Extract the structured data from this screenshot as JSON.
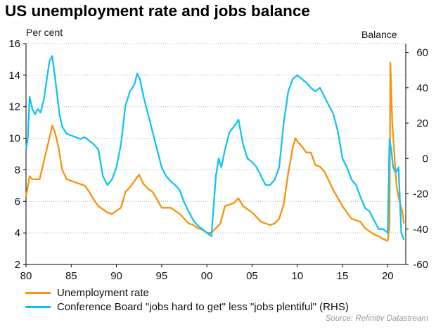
{
  "title": "US unemployment rate and jobs balance",
  "source": "Source: Refinitiv Datastream",
  "colors": {
    "unemployment": "#f5930b",
    "jobs_balance": "#12c3f2",
    "grid": "#b3b3b3",
    "axis": "#000000"
  },
  "chart_data": {
    "type": "line",
    "title": "US unemployment rate and jobs balance",
    "ylabel": "Per cent",
    "y2label": "Balance",
    "xlim": [
      1980,
      2022
    ],
    "ylim": [
      2,
      16
    ],
    "y2lim": [
      -60,
      65
    ],
    "x_ticks": [
      1980,
      1985,
      1990,
      1995,
      2000,
      2005,
      2010,
      2015,
      2020
    ],
    "x_tick_labels": [
      "80",
      "85",
      "90",
      "95",
      "00",
      "05",
      "10",
      "15",
      "20"
    ],
    "y_ticks": [
      2,
      4,
      6,
      8,
      10,
      12,
      14,
      16
    ],
    "y2_ticks": [
      -60,
      -40,
      -20,
      0,
      20,
      40,
      60
    ],
    "grid": "horizontal dotted",
    "legend_position": "bottom",
    "series": [
      {
        "name": "Unemployment rate",
        "axis": "left",
        "x": [
          1980.0,
          1980.4,
          1980.7,
          1981.0,
          1981.5,
          1982.0,
          1982.5,
          1982.9,
          1983.2,
          1983.6,
          1984.0,
          1984.5,
          1985.0,
          1985.5,
          1986.0,
          1986.5,
          1987.0,
          1987.5,
          1988.0,
          1988.5,
          1989.0,
          1989.5,
          1990.0,
          1990.5,
          1991.0,
          1991.5,
          1992.0,
          1992.5,
          1993.0,
          1993.5,
          1994.0,
          1994.5,
          1995.0,
          1995.5,
          1996.0,
          1996.5,
          1997.0,
          1997.5,
          1998.0,
          1998.5,
          1999.0,
          1999.5,
          2000.0,
          2000.5,
          2001.0,
          2001.5,
          2002.0,
          2002.5,
          2003.0,
          2003.5,
          2004.0,
          2004.5,
          2005.0,
          2005.5,
          2006.0,
          2006.5,
          2007.0,
          2007.5,
          2008.0,
          2008.5,
          2009.0,
          2009.5,
          2009.8,
          2010.0,
          2010.5,
          2011.0,
          2011.5,
          2012.0,
          2012.5,
          2013.0,
          2013.5,
          2014.0,
          2014.5,
          2015.0,
          2015.5,
          2016.0,
          2016.5,
          2017.0,
          2017.5,
          2018.0,
          2018.5,
          2019.0,
          2019.5,
          2020.0,
          2020.2,
          2020.3,
          2020.5,
          2020.8,
          2021.0,
          2021.3,
          2021.6,
          2021.8
        ],
        "values": [
          6.3,
          7.6,
          7.4,
          7.4,
          7.4,
          8.6,
          9.8,
          10.8,
          10.4,
          9.4,
          8.0,
          7.4,
          7.3,
          7.2,
          7.1,
          7.0,
          6.6,
          6.1,
          5.7,
          5.5,
          5.3,
          5.2,
          5.4,
          5.6,
          6.6,
          6.9,
          7.3,
          7.7,
          7.1,
          6.8,
          6.6,
          6.1,
          5.6,
          5.6,
          5.6,
          5.4,
          5.2,
          4.9,
          4.6,
          4.5,
          4.3,
          4.2,
          4.0,
          4.0,
          4.3,
          4.6,
          5.7,
          5.8,
          5.9,
          6.2,
          5.7,
          5.5,
          5.3,
          5.0,
          4.7,
          4.6,
          4.5,
          4.6,
          4.9,
          5.8,
          7.8,
          9.4,
          10.0,
          9.8,
          9.5,
          9.1,
          9.1,
          8.3,
          8.2,
          7.9,
          7.3,
          6.7,
          6.2,
          5.7,
          5.3,
          4.9,
          4.8,
          4.7,
          4.3,
          4.1,
          3.9,
          3.8,
          3.6,
          3.5,
          4.4,
          14.8,
          11.1,
          8.4,
          6.9,
          6.0,
          5.4,
          4.6
        ]
      },
      {
        "name": "Conference Board \"jobs hard to get\" less \"jobs plentiful\" (RHS)",
        "axis": "right",
        "x": [
          1980.0,
          1980.2,
          1980.4,
          1980.7,
          1981.0,
          1981.3,
          1981.6,
          1982.0,
          1982.3,
          1982.6,
          1982.9,
          1983.1,
          1983.4,
          1983.7,
          1984.0,
          1984.5,
          1985.0,
          1985.5,
          1986.0,
          1986.5,
          1987.0,
          1987.5,
          1988.0,
          1988.5,
          1989.0,
          1989.5,
          1990.0,
          1990.5,
          1991.0,
          1991.5,
          1992.0,
          1992.3,
          1992.6,
          1993.0,
          1993.5,
          1994.0,
          1994.5,
          1995.0,
          1995.5,
          1996.0,
          1996.5,
          1997.0,
          1997.5,
          1998.0,
          1998.5,
          1999.0,
          1999.5,
          2000.0,
          2000.5,
          2001.0,
          2001.3,
          2001.6,
          2002.0,
          2002.5,
          2003.0,
          2003.5,
          2004.0,
          2004.5,
          2005.0,
          2005.5,
          2006.0,
          2006.5,
          2007.0,
          2007.5,
          2008.0,
          2008.5,
          2009.0,
          2009.5,
          2010.0,
          2010.5,
          2011.0,
          2011.5,
          2012.0,
          2012.5,
          2013.0,
          2013.5,
          2014.0,
          2014.5,
          2015.0,
          2015.5,
          2016.0,
          2016.5,
          2017.0,
          2017.5,
          2018.0,
          2018.5,
          2019.0,
          2019.5,
          2020.0,
          2020.2,
          2020.4,
          2020.6,
          2020.9,
          2021.2,
          2021.5,
          2021.8
        ],
        "values": [
          5,
          12,
          35,
          28,
          25,
          28,
          26,
          34,
          45,
          55,
          58,
          50,
          38,
          25,
          18,
          14,
          13,
          12,
          11,
          12,
          10,
          8,
          5,
          -10,
          -15,
          -12,
          -5,
          8,
          30,
          38,
          42,
          48,
          45,
          35,
          25,
          15,
          5,
          -5,
          -10,
          -13,
          -15,
          -18,
          -25,
          -30,
          -35,
          -38,
          -40,
          -42,
          -44,
          -10,
          0,
          -5,
          5,
          15,
          18,
          22,
          8,
          0,
          -2,
          -5,
          -10,
          -15,
          -15,
          -12,
          -5,
          20,
          38,
          45,
          47,
          45,
          43,
          40,
          38,
          40,
          35,
          30,
          25,
          15,
          0,
          -5,
          -12,
          -15,
          -22,
          -28,
          -30,
          -35,
          -40,
          -40,
          -42,
          11,
          5,
          -5,
          -8,
          -5,
          -42,
          -46
        ]
      }
    ]
  }
}
